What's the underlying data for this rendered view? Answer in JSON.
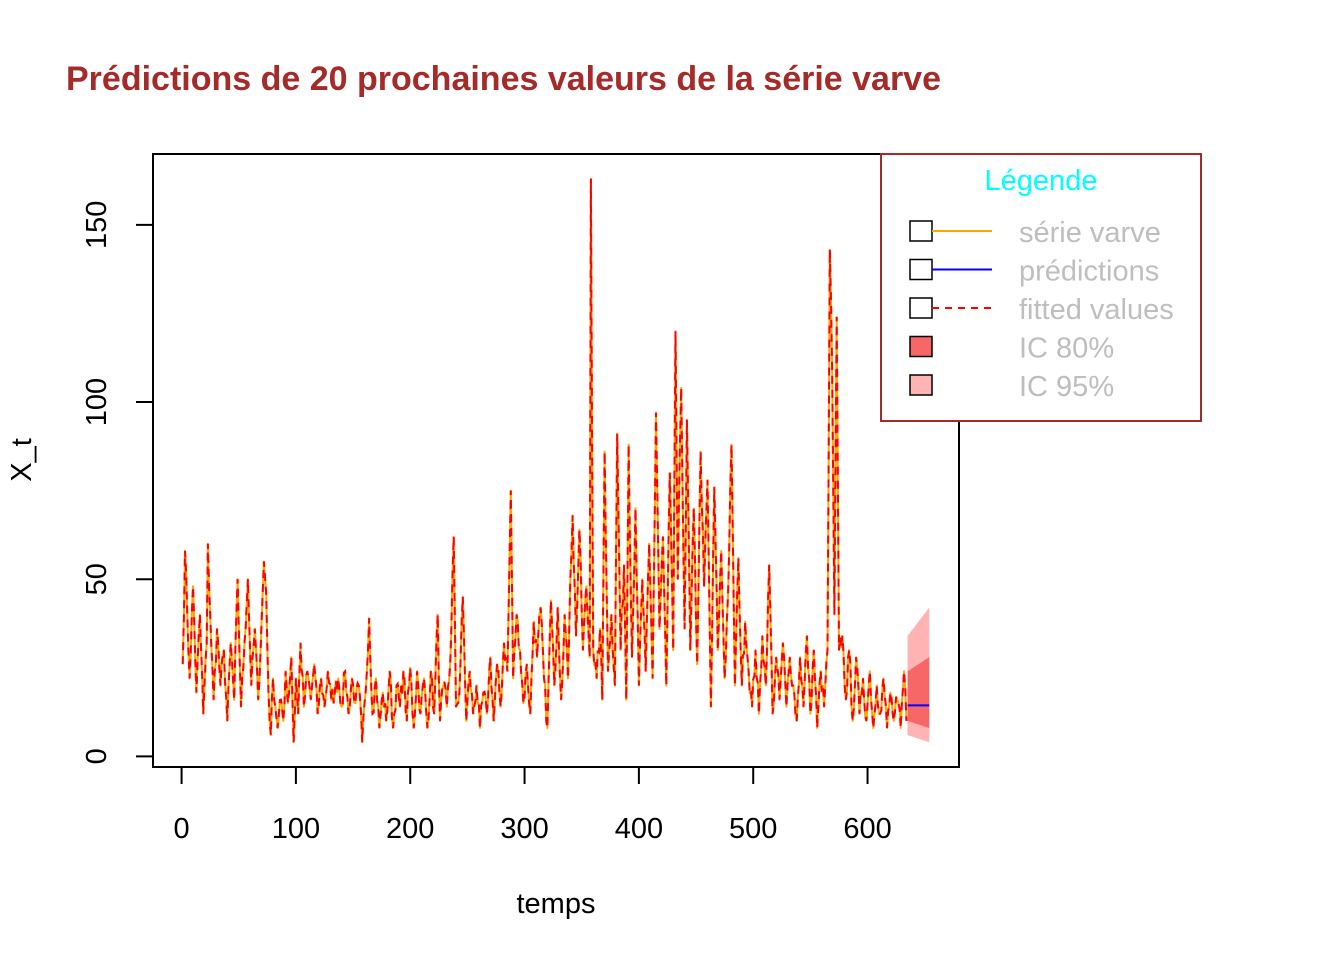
{
  "colors": {
    "title": "#A52A2A",
    "series": "#FFA500",
    "fitted": "#FF0000",
    "prediction": "#0000FF",
    "ci80": "#F76767",
    "ci95": "#FFB3B3",
    "legend_border": "#A52A2A",
    "legend_title": "#00FFFF",
    "legend_text": "#BEBEBE"
  },
  "chart_data": {
    "type": "line",
    "title": "Prédictions de 20 prochaines valeurs de la série varve",
    "xlabel": "temps",
    "ylabel": "X_t",
    "xlim": [
      -25,
      680
    ],
    "ylim": [
      -3,
      170
    ],
    "x_ticks": [
      0,
      100,
      200,
      300,
      400,
      500,
      600
    ],
    "y_ticks": [
      0,
      50,
      100,
      150
    ],
    "grid": false,
    "legend_position": "top-right",
    "series_keyframes": [
      [
        1,
        26
      ],
      [
        3,
        58
      ],
      [
        5,
        40
      ],
      [
        7,
        22
      ],
      [
        10,
        48
      ],
      [
        13,
        18
      ],
      [
        16,
        40
      ],
      [
        19,
        12
      ],
      [
        22,
        32
      ],
      [
        23,
        60
      ],
      [
        25,
        40
      ],
      [
        28,
        16
      ],
      [
        31,
        36
      ],
      [
        34,
        20
      ],
      [
        37,
        30
      ],
      [
        40,
        10
      ],
      [
        43,
        32
      ],
      [
        46,
        16
      ],
      [
        49,
        50
      ],
      [
        52,
        14
      ],
      [
        55,
        32
      ],
      [
        58,
        50
      ],
      [
        61,
        20
      ],
      [
        64,
        36
      ],
      [
        67,
        16
      ],
      [
        70,
        38
      ],
      [
        72,
        55
      ],
      [
        74,
        46
      ],
      [
        76,
        18
      ],
      [
        78,
        6
      ],
      [
        80,
        22
      ],
      [
        84,
        8
      ],
      [
        87,
        16
      ],
      [
        89,
        10
      ],
      [
        91,
        24
      ],
      [
        93,
        15
      ],
      [
        96,
        28
      ],
      [
        98,
        4
      ],
      [
        100,
        22
      ],
      [
        102,
        12
      ],
      [
        104,
        32
      ],
      [
        107,
        14
      ],
      [
        110,
        24
      ],
      [
        113,
        16
      ],
      [
        116,
        26
      ],
      [
        119,
        12
      ],
      [
        122,
        22
      ],
      [
        125,
        14
      ],
      [
        128,
        24
      ],
      [
        131,
        16
      ],
      [
        134,
        18
      ],
      [
        137,
        22
      ],
      [
        140,
        14
      ],
      [
        143,
        24
      ],
      [
        146,
        12
      ],
      [
        149,
        22
      ],
      [
        152,
        15
      ],
      [
        155,
        20
      ],
      [
        158,
        4
      ],
      [
        161,
        18
      ],
      [
        164,
        39
      ],
      [
        167,
        12
      ],
      [
        170,
        22
      ],
      [
        173,
        8
      ],
      [
        176,
        18
      ],
      [
        179,
        10
      ],
      [
        182,
        24
      ],
      [
        185,
        8
      ],
      [
        188,
        20
      ],
      [
        191,
        14
      ],
      [
        194,
        24
      ],
      [
        197,
        10
      ],
      [
        200,
        25
      ],
      [
        203,
        8
      ],
      [
        206,
        24
      ],
      [
        209,
        12
      ],
      [
        212,
        22
      ],
      [
        215,
        8
      ],
      [
        218,
        24
      ],
      [
        221,
        12
      ],
      [
        224,
        40
      ],
      [
        226,
        10
      ],
      [
        229,
        20
      ],
      [
        232,
        14
      ],
      [
        235,
        26
      ],
      [
        238,
        62
      ],
      [
        240,
        14
      ],
      [
        243,
        18
      ],
      [
        246,
        45
      ],
      [
        249,
        10
      ],
      [
        252,
        24
      ],
      [
        255,
        12
      ],
      [
        258,
        20
      ],
      [
        261,
        8
      ],
      [
        264,
        18
      ],
      [
        267,
        12
      ],
      [
        270,
        28
      ],
      [
        273,
        10
      ],
      [
        276,
        26
      ],
      [
        279,
        14
      ],
      [
        282,
        32
      ],
      [
        285,
        24
      ],
      [
        288,
        75
      ],
      [
        290,
        22
      ],
      [
        293,
        40
      ],
      [
        296,
        30
      ],
      [
        299,
        15
      ],
      [
        302,
        26
      ],
      [
        305,
        12
      ],
      [
        308,
        38
      ],
      [
        311,
        28
      ],
      [
        314,
        42
      ],
      [
        317,
        22
      ],
      [
        320,
        8
      ],
      [
        323,
        44
      ],
      [
        326,
        20
      ],
      [
        329,
        42
      ],
      [
        332,
        16
      ],
      [
        335,
        40
      ],
      [
        338,
        22
      ],
      [
        340,
        50
      ],
      [
        342,
        68
      ],
      [
        345,
        34
      ],
      [
        348,
        64
      ],
      [
        351,
        30
      ],
      [
        354,
        48
      ],
      [
        357,
        28
      ],
      [
        358,
        163
      ],
      [
        360,
        30
      ],
      [
        363,
        22
      ],
      [
        366,
        36
      ],
      [
        368,
        16
      ],
      [
        370,
        86
      ],
      [
        373,
        24
      ],
      [
        376,
        40
      ],
      [
        379,
        20
      ],
      [
        381,
        91
      ],
      [
        384,
        30
      ],
      [
        387,
        54
      ],
      [
        389,
        16
      ],
      [
        391,
        88
      ],
      [
        394,
        28
      ],
      [
        397,
        70
      ],
      [
        400,
        20
      ],
      [
        403,
        50
      ],
      [
        406,
        24
      ],
      [
        409,
        60
      ],
      [
        412,
        22
      ],
      [
        415,
        97
      ],
      [
        418,
        36
      ],
      [
        421,
        62
      ],
      [
        424,
        20
      ],
      [
        427,
        80
      ],
      [
        430,
        30
      ],
      [
        432,
        120
      ],
      [
        434,
        50
      ],
      [
        437,
        104
      ],
      [
        440,
        36
      ],
      [
        442,
        95
      ],
      [
        445,
        30
      ],
      [
        448,
        70
      ],
      [
        451,
        26
      ],
      [
        454,
        86
      ],
      [
        457,
        48
      ],
      [
        460,
        78
      ],
      [
        463,
        14
      ],
      [
        466,
        76
      ],
      [
        469,
        30
      ],
      [
        472,
        58
      ],
      [
        475,
        22
      ],
      [
        478,
        46
      ],
      [
        481,
        88
      ],
      [
        484,
        20
      ],
      [
        487,
        56
      ],
      [
        490,
        20
      ],
      [
        493,
        38
      ],
      [
        496,
        24
      ],
      [
        499,
        14
      ],
      [
        502,
        30
      ],
      [
        505,
        12
      ],
      [
        508,
        34
      ],
      [
        511,
        20
      ],
      [
        514,
        54
      ],
      [
        517,
        12
      ],
      [
        520,
        28
      ],
      [
        523,
        16
      ],
      [
        526,
        32
      ],
      [
        529,
        14
      ],
      [
        532,
        28
      ],
      [
        535,
        20
      ],
      [
        538,
        10
      ],
      [
        541,
        28
      ],
      [
        544,
        14
      ],
      [
        547,
        34
      ],
      [
        550,
        12
      ],
      [
        553,
        30
      ],
      [
        556,
        8
      ],
      [
        559,
        24
      ],
      [
        562,
        14
      ],
      [
        565,
        30
      ],
      [
        567,
        143
      ],
      [
        569,
        110
      ],
      [
        571,
        40
      ],
      [
        573,
        124
      ],
      [
        575,
        30
      ],
      [
        578,
        34
      ],
      [
        581,
        16
      ],
      [
        584,
        30
      ],
      [
        587,
        10
      ],
      [
        590,
        28
      ],
      [
        593,
        12
      ],
      [
        596,
        22
      ],
      [
        599,
        10
      ],
      [
        602,
        24
      ],
      [
        605,
        8
      ],
      [
        608,
        20
      ],
      [
        611,
        12
      ],
      [
        614,
        22
      ],
      [
        617,
        8
      ],
      [
        620,
        18
      ],
      [
        623,
        10
      ],
      [
        626,
        16
      ],
      [
        629,
        8
      ],
      [
        632,
        24
      ],
      [
        634,
        10
      ]
    ],
    "prediction": {
      "x": [
        635,
        654
      ],
      "y": [
        14.4,
        14.4
      ]
    },
    "ci80": {
      "x": [
        635,
        654
      ],
      "lower": [
        10,
        8
      ],
      "upper": [
        24,
        28
      ]
    },
    "ci95": {
      "x": [
        635,
        654
      ],
      "lower": [
        6,
        4
      ],
      "upper": [
        34,
        42
      ]
    }
  },
  "legend": {
    "title": "Légende",
    "items": [
      {
        "label": "série varve",
        "kind": "line",
        "color": "#FFA500",
        "dash": false
      },
      {
        "label": "prédictions",
        "kind": "line",
        "color": "#0000FF",
        "dash": false
      },
      {
        "label": "fitted values",
        "kind": "line",
        "color": "#FF0000",
        "dash": true
      },
      {
        "label": "IC 80%",
        "kind": "fill",
        "color": "#F76767"
      },
      {
        "label": "IC 95%",
        "kind": "fill",
        "color": "#FFB3B3"
      }
    ]
  }
}
